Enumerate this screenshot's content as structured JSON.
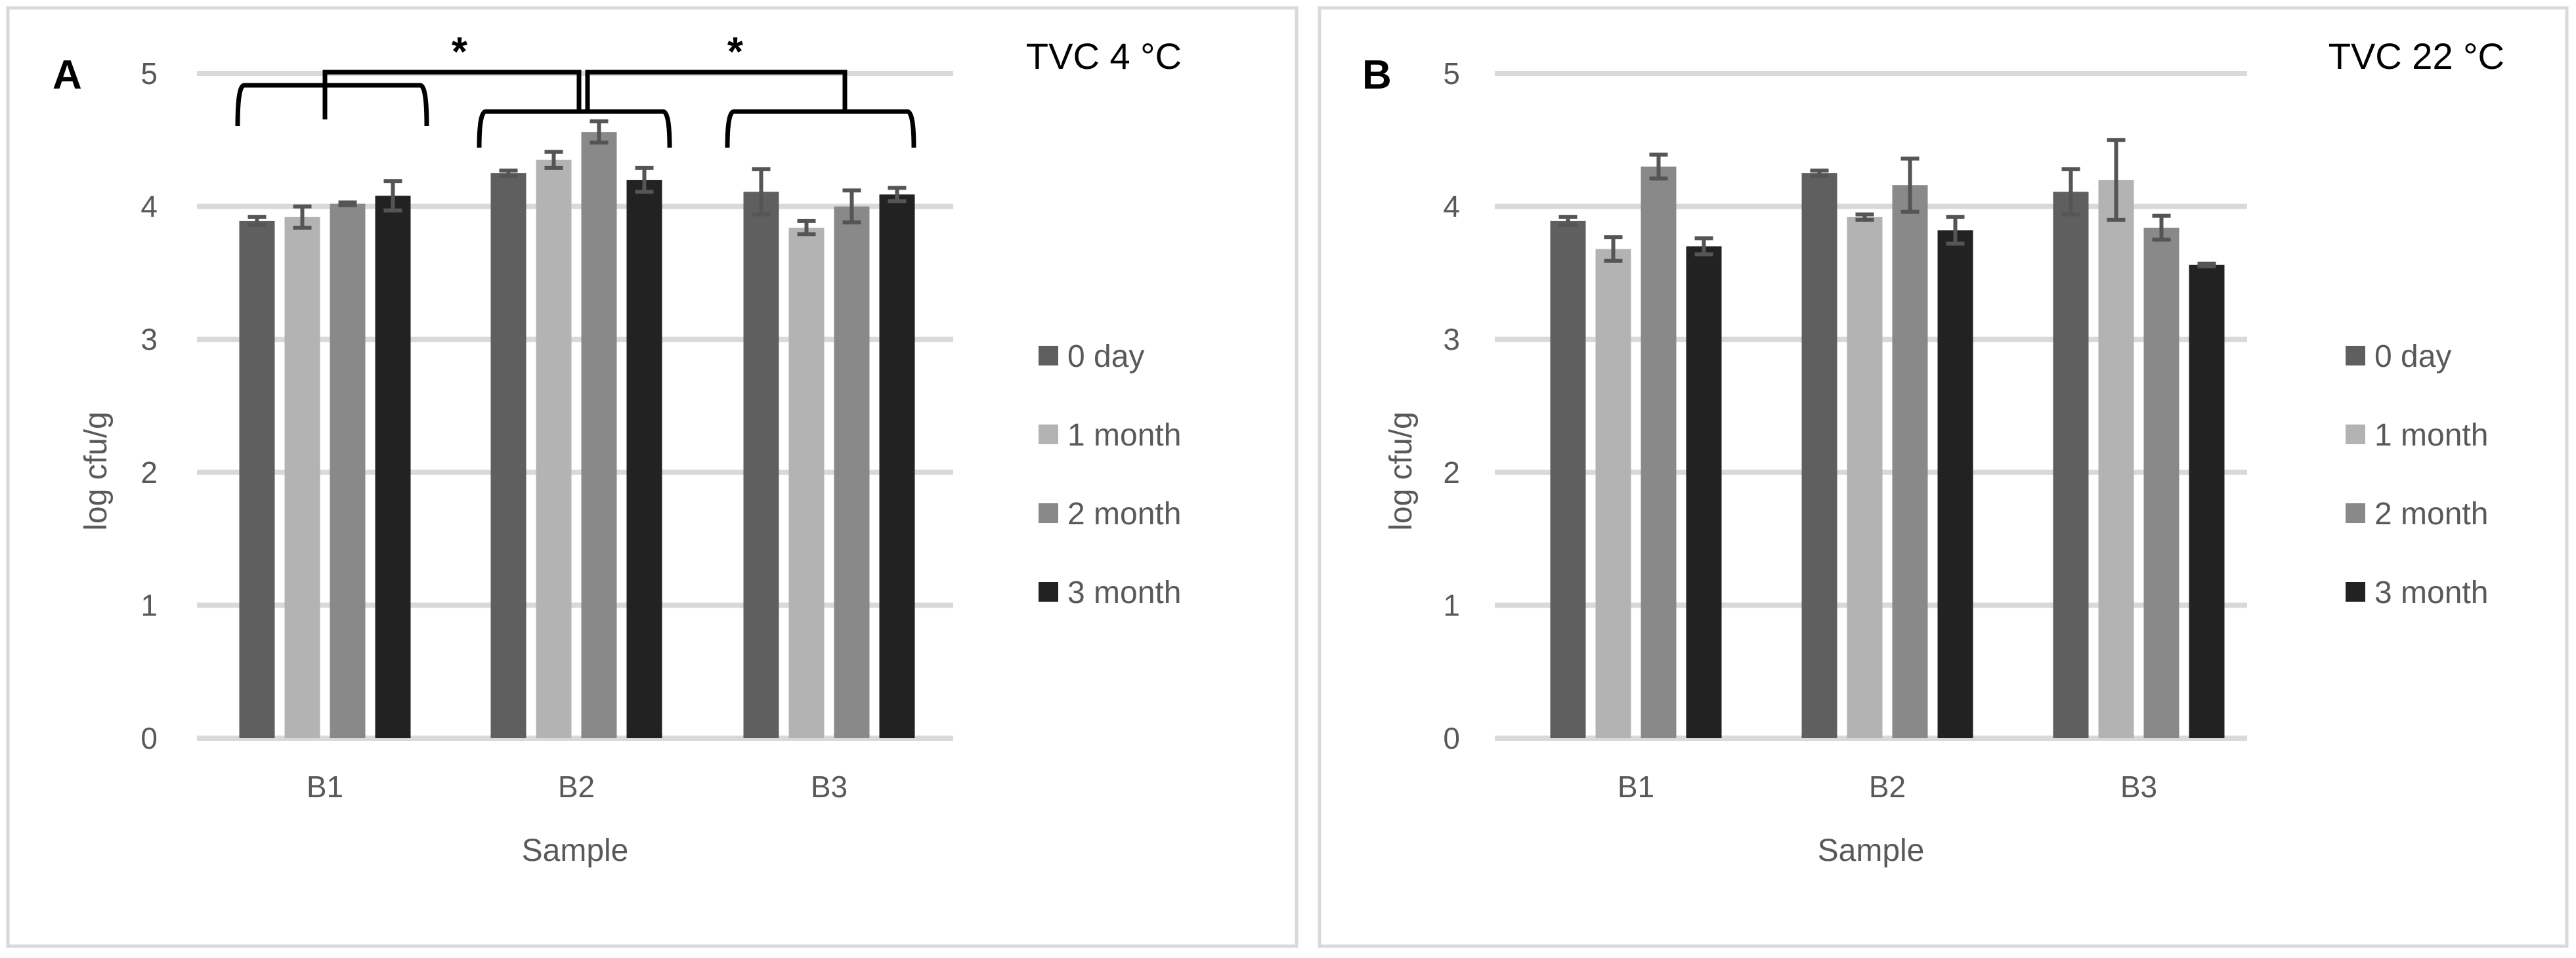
{
  "chart_data": [
    {
      "type": "bar",
      "panel_letter": "A",
      "title": "TVC 4 °C",
      "xlabel": "Sample",
      "ylabel": "log cfu/g",
      "ylim": [
        0,
        5
      ],
      "yticks": [
        "0",
        "1",
        "2",
        "3",
        "4",
        "5"
      ],
      "grid": true,
      "legend_position": "right",
      "categories": [
        "B1",
        "B2",
        "B3"
      ],
      "series": [
        {
          "name": "0 day",
          "color": "#5f5f5f",
          "values": [
            3.89,
            4.25,
            4.11
          ],
          "errors": [
            0.03,
            0.02,
            0.17
          ]
        },
        {
          "name": "1 month",
          "color": "#b3b3b3",
          "values": [
            3.92,
            4.35,
            3.84
          ],
          "errors": [
            0.08,
            0.06,
            0.05
          ]
        },
        {
          "name": "2 month",
          "color": "#898989",
          "values": [
            4.02,
            4.56,
            4.0
          ],
          "errors": [
            0.01,
            0.08,
            0.12
          ]
        },
        {
          "name": "3 month",
          "color": "#222222",
          "values": [
            4.08,
            4.2,
            4.09
          ],
          "errors": [
            0.11,
            0.09,
            0.05
          ]
        }
      ],
      "annotations": [
        {
          "text": "*",
          "between": [
            "B1",
            "B2"
          ]
        },
        {
          "text": "*",
          "between": [
            "B2",
            "B3"
          ]
        }
      ]
    },
    {
      "type": "bar",
      "panel_letter": "B",
      "title": "TVC 22 °C",
      "xlabel": "Sample",
      "ylabel": "log cfu/g",
      "ylim": [
        0,
        5
      ],
      "yticks": [
        "0",
        "1",
        "2",
        "3",
        "4",
        "5"
      ],
      "grid": true,
      "legend_position": "right",
      "categories": [
        "B1",
        "B2",
        "B3"
      ],
      "series": [
        {
          "name": "0 day",
          "color": "#5f5f5f",
          "values": [
            3.89,
            4.25,
            4.11
          ],
          "errors": [
            0.03,
            0.02,
            0.17
          ]
        },
        {
          "name": "1 month",
          "color": "#b3b3b3",
          "values": [
            3.68,
            3.92,
            4.2
          ],
          "errors": [
            0.09,
            0.02,
            0.3
          ]
        },
        {
          "name": "2 month",
          "color": "#898989",
          "values": [
            4.3,
            4.16,
            3.84
          ],
          "errors": [
            0.09,
            0.2,
            0.09
          ]
        },
        {
          "name": "3 month",
          "color": "#222222",
          "values": [
            3.7,
            3.82,
            3.56
          ],
          "errors": [
            0.06,
            0.1,
            0.01
          ]
        }
      ],
      "annotations": []
    }
  ]
}
